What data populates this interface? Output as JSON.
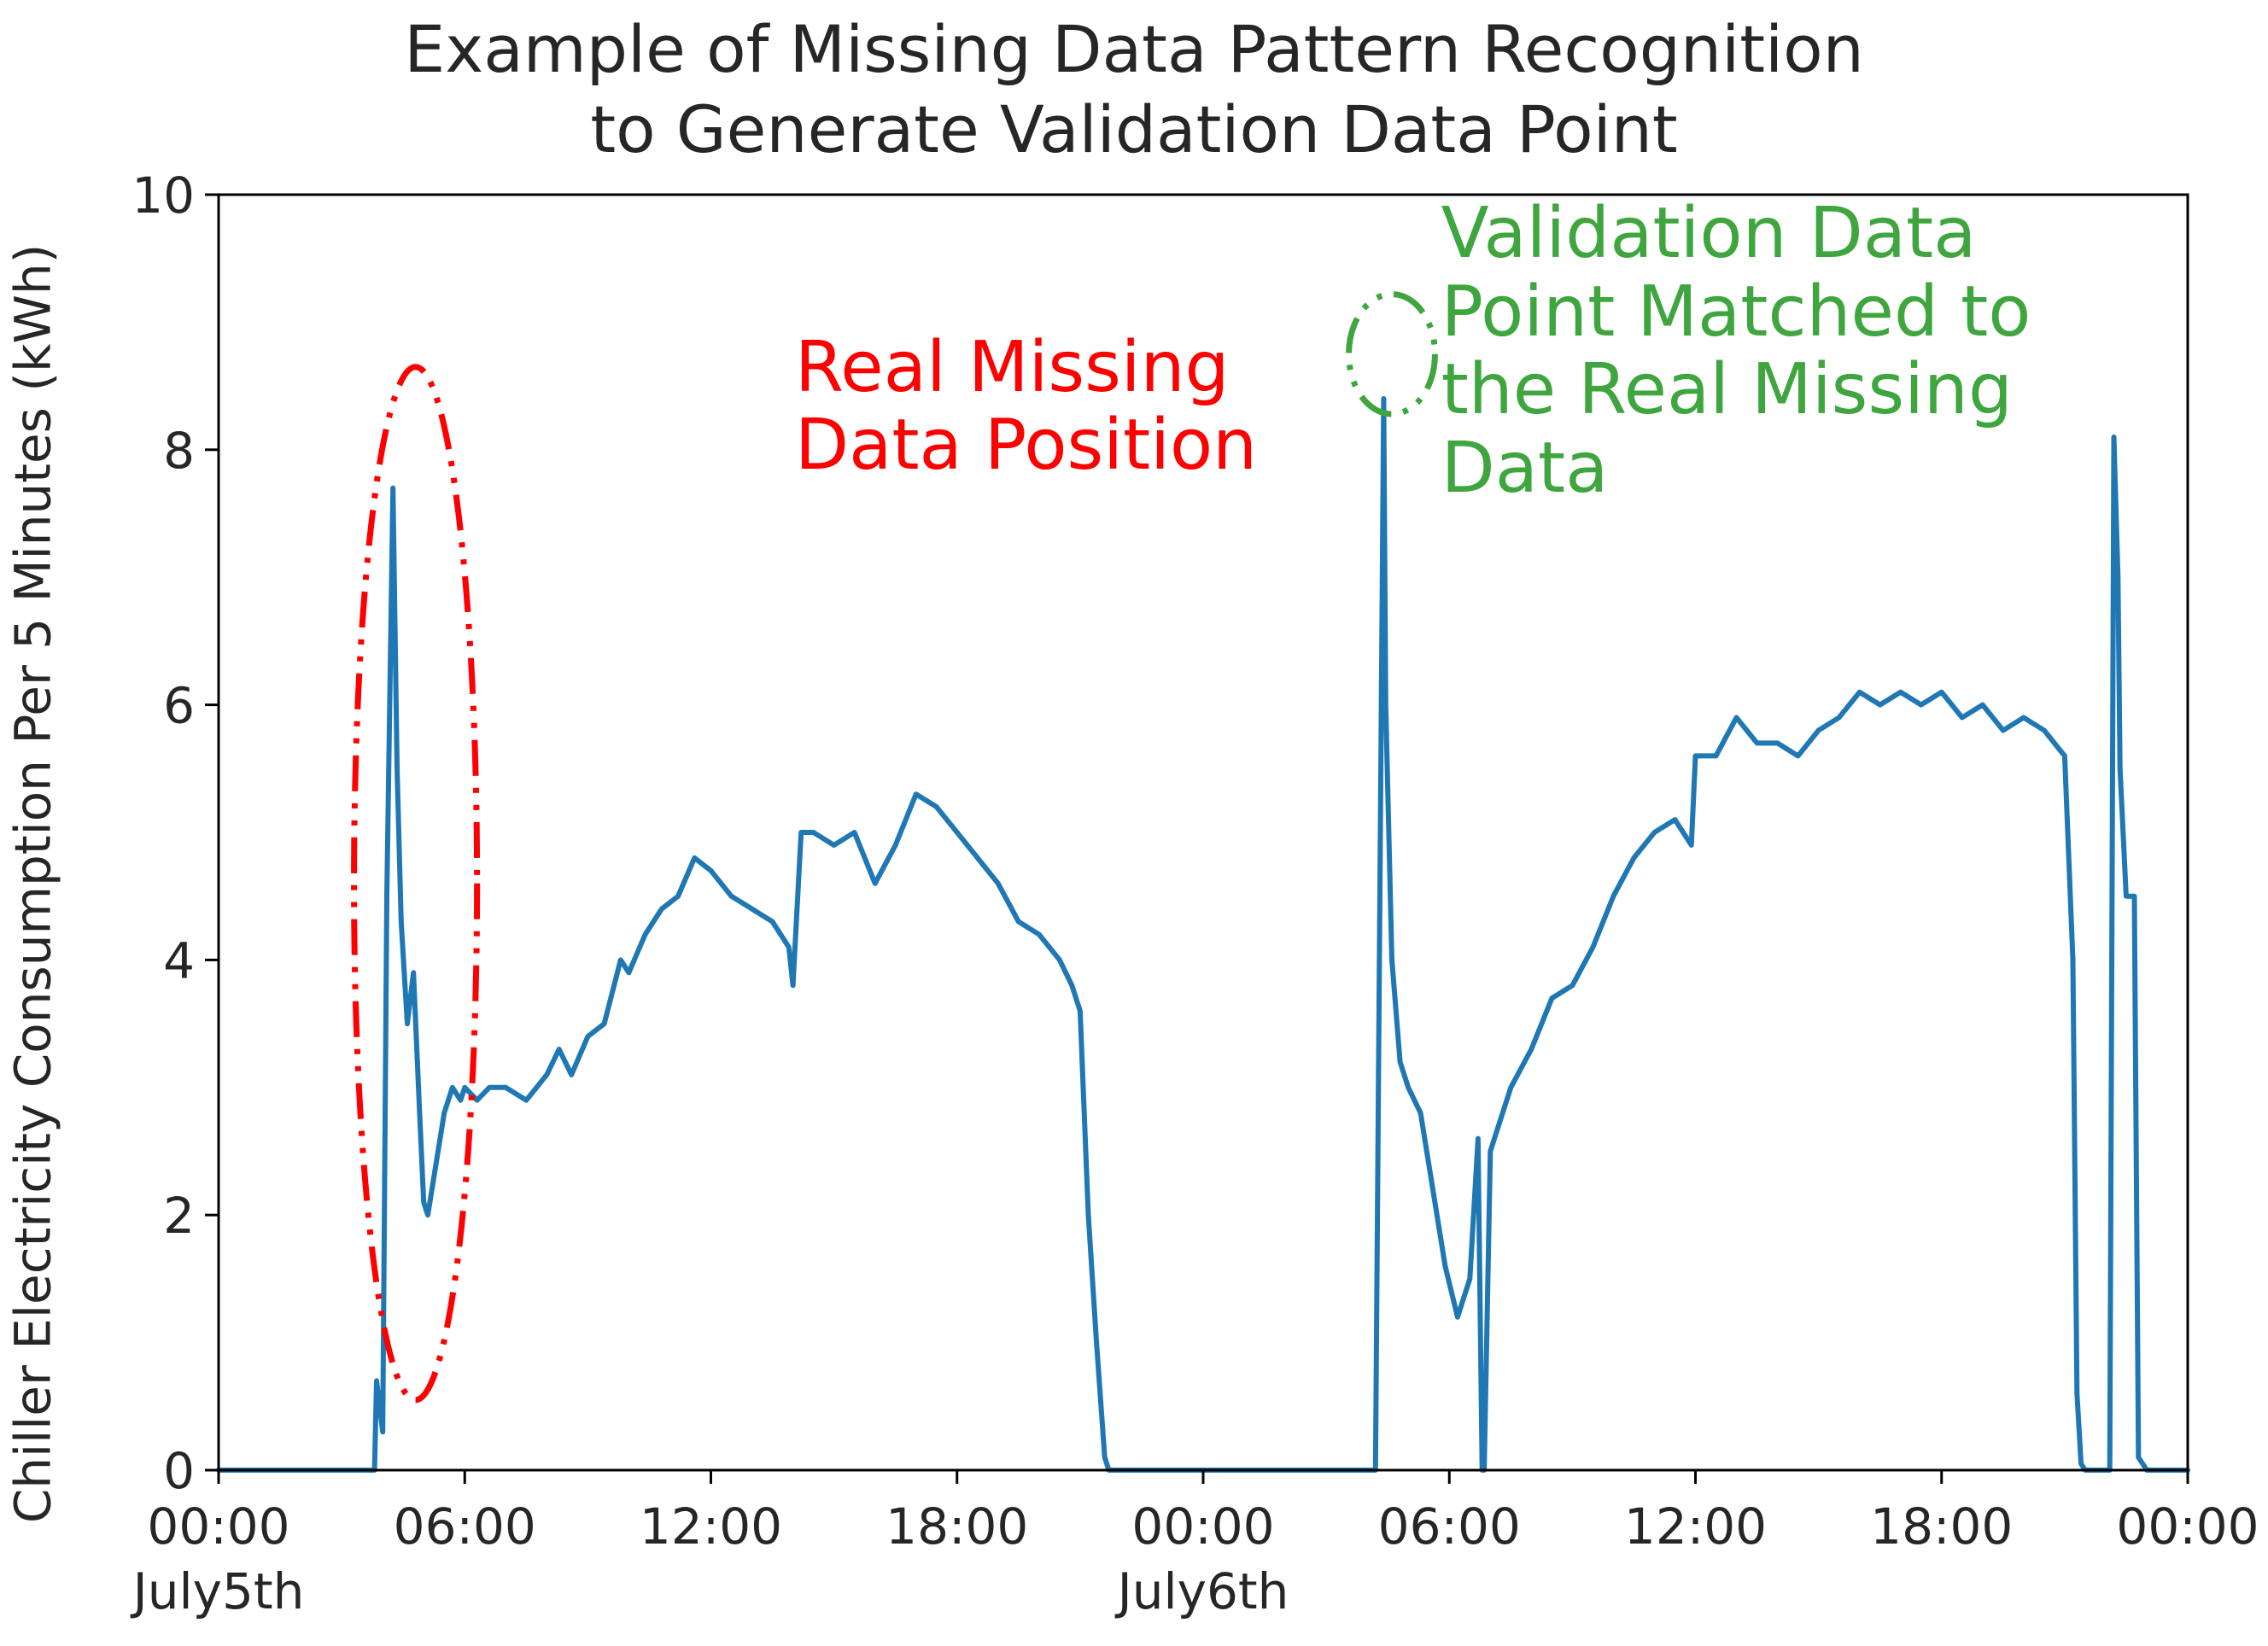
{
  "chart_data": {
    "type": "line",
    "title_lines": [
      "Example of Missing Data Pattern Recognition",
      "to Generate Validation Data Point"
    ],
    "xlabel": "",
    "ylabel": "Chiller Electricity Consumption Per 5 Minutes (kWh)",
    "xlim": [
      0,
      48
    ],
    "ylim": [
      0,
      10
    ],
    "yticks": [
      {
        "value": 0,
        "label": "0"
      },
      {
        "value": 2,
        "label": "2"
      },
      {
        "value": 4,
        "label": "4"
      },
      {
        "value": 6,
        "label": "6"
      },
      {
        "value": 8,
        "label": "8"
      },
      {
        "value": 10,
        "label": "10"
      }
    ],
    "xticks": [
      {
        "hour": 0,
        "label": "00:00",
        "sublabel": "July5th"
      },
      {
        "hour": 6,
        "label": "06:00",
        "sublabel": ""
      },
      {
        "hour": 12,
        "label": "12:00",
        "sublabel": ""
      },
      {
        "hour": 18,
        "label": "18:00",
        "sublabel": ""
      },
      {
        "hour": 24,
        "label": "00:00",
        "sublabel": "July6th"
      },
      {
        "hour": 30,
        "label": "06:00",
        "sublabel": ""
      },
      {
        "hour": 36,
        "label": "12:00",
        "sublabel": ""
      },
      {
        "hour": 42,
        "label": "18:00",
        "sublabel": ""
      },
      {
        "hour": 48,
        "label": "00:00",
        "sublabel": ""
      }
    ],
    "grid": false,
    "series": [
      {
        "color": "#1f77b4",
        "x": [
          0,
          3.8,
          3.85,
          4.0,
          4.1,
          4.25,
          4.35,
          4.45,
          4.6,
          4.75,
          4.9,
          5.0,
          5.1,
          5.2,
          5.3,
          5.5,
          5.7,
          5.9,
          6.0,
          6.3,
          6.6,
          7.0,
          7.5,
          8.0,
          8.3,
          8.6,
          9.0,
          9.4,
          9.8,
          10.0,
          10.4,
          10.8,
          11.2,
          11.6,
          12.0,
          12.5,
          13.0,
          13.5,
          13.9,
          14.0,
          14.2,
          14.5,
          15.0,
          15.5,
          16.0,
          16.5,
          17.0,
          17.5,
          18.0,
          18.5,
          19.0,
          19.5,
          20.0,
          20.5,
          20.8,
          21.0,
          21.2,
          21.4,
          21.6,
          21.7,
          21.8,
          22.0,
          22.5,
          24.0,
          28.0,
          28.2,
          28.4,
          28.45,
          28.6,
          28.8,
          29.0,
          29.3,
          29.6,
          29.9,
          30.2,
          30.5,
          30.7,
          30.8,
          30.85,
          31.0,
          31.2,
          31.5,
          32.0,
          32.5,
          33.0,
          33.5,
          34.0,
          34.5,
          35.0,
          35.5,
          35.9,
          36.0,
          36.5,
          37.0,
          37.5,
          38.0,
          38.5,
          39.0,
          39.5,
          40.0,
          40.5,
          41.0,
          41.5,
          42.0,
          42.5,
          43.0,
          43.5,
          44.0,
          44.5,
          45.0,
          45.2,
          45.3,
          45.4,
          45.5,
          46.1,
          46.2,
          46.3,
          46.35,
          46.5,
          46.7,
          46.8,
          46.9,
          47.0,
          47.1,
          48.0
        ],
        "y": [
          0,
          0,
          0.7,
          0.3,
          4.5,
          7.7,
          5.5,
          4.3,
          3.5,
          3.9,
          2.8,
          2.1,
          2.0,
          2.2,
          2.4,
          2.8,
          3.0,
          2.9,
          3.0,
          2.9,
          3.0,
          3.0,
          2.9,
          3.1,
          3.3,
          3.1,
          3.4,
          3.5,
          4.0,
          3.9,
          4.2,
          4.4,
          4.5,
          4.8,
          4.7,
          4.5,
          4.4,
          4.3,
          4.1,
          3.8,
          5.0,
          5.0,
          4.9,
          5.0,
          4.6,
          4.9,
          5.3,
          5.2,
          5.0,
          4.8,
          4.6,
          4.3,
          4.2,
          4.0,
          3.8,
          3.6,
          2.0,
          1.0,
          0.1,
          0,
          0,
          0,
          0,
          0,
          0,
          0,
          8.4,
          6.0,
          4.0,
          3.2,
          3.0,
          2.8,
          2.2,
          1.6,
          1.2,
          1.5,
          2.6,
          0,
          0,
          2.5,
          2.7,
          3.0,
          3.3,
          3.7,
          3.8,
          4.1,
          4.5,
          4.8,
          5.0,
          5.1,
          4.9,
          5.6,
          5.6,
          5.9,
          5.7,
          5.7,
          5.6,
          5.8,
          5.9,
          6.1,
          6.0,
          6.1,
          6.0,
          6.1,
          5.9,
          6.0,
          5.8,
          5.9,
          5.8,
          5.6,
          4.0,
          0.6,
          0.05,
          0,
          0,
          8.1,
          7.0,
          5.5,
          4.5,
          4.5,
          0.1,
          0.05,
          0,
          0,
          0
        ]
      }
    ],
    "annotations": [
      {
        "lines": [
          "Real Missing",
          "Data Position"
        ],
        "color": "#ff0000"
      },
      {
        "lines": [
          "Validation Data",
          "Point Matched to",
          "the Real Missing",
          "Data"
        ],
        "color": "#3fa63f"
      }
    ],
    "highlights": [
      {
        "shape": "ellipse",
        "center": [
          4.8,
          4.6
        ],
        "radius_x_hours": 1.5,
        "radius_y_value": 4.05,
        "color": "#ff0000",
        "style": "dash-dot"
      },
      {
        "shape": "circle",
        "center": [
          28.6,
          8.75
        ],
        "radius_x_hours": 1.05,
        "radius_y_value": 0.47,
        "color": "#3fa63f",
        "style": "dash-dot"
      }
    ]
  }
}
